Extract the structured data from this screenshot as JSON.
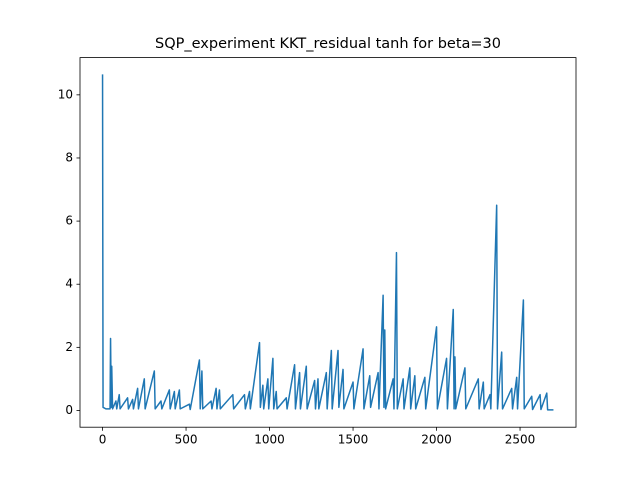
{
  "chart_data": {
    "type": "line",
    "title": "SQP_experiment KKT_residual tanh for beta=30",
    "x": [
      0,
      3,
      20,
      45,
      48,
      52,
      55,
      60,
      80,
      85,
      100,
      105,
      150,
      155,
      180,
      185,
      210,
      215,
      250,
      255,
      310,
      315,
      350,
      355,
      400,
      405,
      430,
      435,
      460,
      465,
      520,
      525,
      580,
      585,
      595,
      600,
      650,
      655,
      680,
      685,
      700,
      705,
      780,
      785,
      850,
      855,
      880,
      885,
      940,
      945,
      960,
      965,
      990,
      995,
      1020,
      1025,
      1040,
      1045,
      1100,
      1105,
      1150,
      1155,
      1180,
      1185,
      1220,
      1225,
      1270,
      1275,
      1290,
      1295,
      1340,
      1345,
      1370,
      1375,
      1410,
      1415,
      1440,
      1445,
      1500,
      1505,
      1560,
      1565,
      1600,
      1605,
      1650,
      1655,
      1680,
      1685,
      1690,
      1695,
      1740,
      1745,
      1760,
      1765,
      1800,
      1805,
      1840,
      1845,
      1870,
      1875,
      1930,
      1935,
      2000,
      2005,
      2060,
      2065,
      2100,
      2105,
      2110,
      2115,
      2170,
      2175,
      2250,
      2255,
      2280,
      2285,
      2320,
      2325,
      2360,
      2365,
      2390,
      2395,
      2450,
      2455,
      2480,
      2485,
      2520,
      2525,
      2570,
      2575,
      2620,
      2625,
      2660,
      2665,
      2700
    ],
    "series": [
      {
        "name": "KKT_residual",
        "color": "#1f77b4",
        "values": [
          10.65,
          0.1,
          0.05,
          0.05,
          2.28,
          0.1,
          1.4,
          0.05,
          0.3,
          0.05,
          0.5,
          0.05,
          0.4,
          0.05,
          0.35,
          0.05,
          0.7,
          0.05,
          1.0,
          0.05,
          1.25,
          0.05,
          0.3,
          0.05,
          0.65,
          0.05,
          0.6,
          0.05,
          0.65,
          0.05,
          0.2,
          0.03,
          1.6,
          0.05,
          1.25,
          0.05,
          0.3,
          0.05,
          0.7,
          0.05,
          0.65,
          0.05,
          0.5,
          0.05,
          0.5,
          0.05,
          0.6,
          0.05,
          2.15,
          0.1,
          0.8,
          0.05,
          1.0,
          0.05,
          1.65,
          0.05,
          0.6,
          0.05,
          0.4,
          0.05,
          1.45,
          0.05,
          1.2,
          0.05,
          1.4,
          0.05,
          0.95,
          0.05,
          1.0,
          0.05,
          1.2,
          0.05,
          1.9,
          0.05,
          1.9,
          0.1,
          1.3,
          0.05,
          0.9,
          0.05,
          1.95,
          0.05,
          1.1,
          0.1,
          1.2,
          0.05,
          3.65,
          0.1,
          2.55,
          0.05,
          1.0,
          0.05,
          5.0,
          0.05,
          1.0,
          0.05,
          1.35,
          0.05,
          1.1,
          0.05,
          1.05,
          0.05,
          2.65,
          0.05,
          1.65,
          0.05,
          3.2,
          0.05,
          1.7,
          0.05,
          1.35,
          0.05,
          1.0,
          0.05,
          0.9,
          0.05,
          0.5,
          0.05,
          6.5,
          0.05,
          1.85,
          0.05,
          0.7,
          0.05,
          1.05,
          0.05,
          3.5,
          0.05,
          0.45,
          0.03,
          0.5,
          0.03,
          0.55,
          0.02,
          0.02
        ]
      }
    ],
    "xlim": [
      -135,
      2835
    ],
    "xticks": [
      0,
      500,
      1000,
      1500,
      2000,
      2500
    ],
    "ylim": [
      -0.53,
      11.18
    ],
    "yticks": [
      0,
      2,
      4,
      6,
      8,
      10
    ]
  }
}
